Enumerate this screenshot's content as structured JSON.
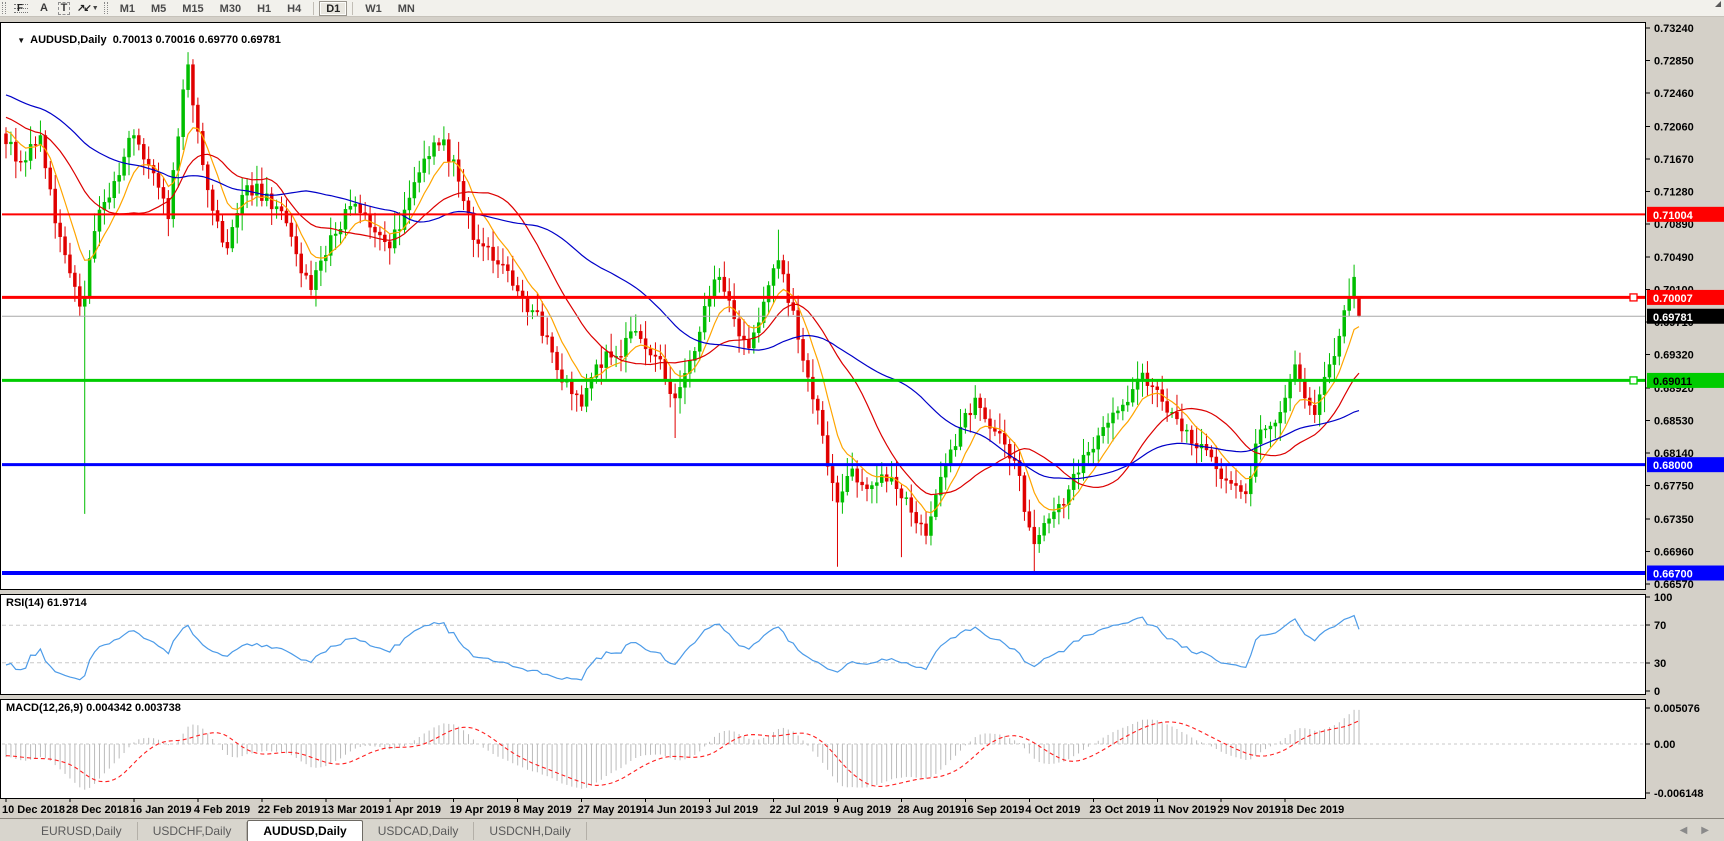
{
  "toolbar": {
    "tools": [
      {
        "id": "fibonacci",
        "glyph": "F"
      },
      {
        "id": "label",
        "glyph": "A"
      },
      {
        "id": "text",
        "glyph": "T"
      },
      {
        "id": "arrows",
        "glyph": "↗↙"
      }
    ],
    "timeframes": [
      "M1",
      "M5",
      "M15",
      "M30",
      "H1",
      "H4",
      "D1",
      "W1",
      "MN"
    ],
    "active_timeframe": "D1"
  },
  "chart_header": {
    "symbol_title": "AUDUSD,Daily",
    "ohlc_text": "0.70013 0.70016 0.69770 0.69781"
  },
  "indicators": {
    "rsi_label": "RSI(14) 61.9714",
    "macd_label": "MACD(12,26,9) 0.004342 0.003738"
  },
  "tabs": {
    "items": [
      "EURUSD,Daily",
      "USDCHF,Daily",
      "AUDUSD,Daily",
      "USDCAD,Daily",
      "USDCNH,Daily"
    ],
    "active": "AUDUSD,Daily"
  },
  "chart_data": {
    "type": "candlestick",
    "symbol": "AUDUSD",
    "timeframe": "Daily",
    "last_candle": {
      "open": 0.70013,
      "high": 0.70016,
      "low": 0.6977,
      "close": 0.69781
    },
    "bars": 276,
    "label_interval_bars": 13,
    "price_anchors": [
      [
        0,
        0.7185
      ],
      [
        4,
        0.7165
      ],
      [
        7,
        0.7195
      ],
      [
        10,
        0.709
      ],
      [
        13,
        0.703
      ],
      [
        15,
        0.699
      ],
      [
        16,
        0.7
      ],
      [
        18,
        0.708
      ],
      [
        22,
        0.714
      ],
      [
        26,
        0.7195
      ],
      [
        30,
        0.715
      ],
      [
        33,
        0.7095
      ],
      [
        36,
        0.725
      ],
      [
        37,
        0.728
      ],
      [
        39,
        0.72
      ],
      [
        42,
        0.7105
      ],
      [
        45,
        0.706
      ],
      [
        49,
        0.7135
      ],
      [
        53,
        0.7125
      ],
      [
        57,
        0.709
      ],
      [
        60,
        0.703
      ],
      [
        62,
        0.701
      ],
      [
        66,
        0.7075
      ],
      [
        70,
        0.711
      ],
      [
        74,
        0.7085
      ],
      [
        78,
        0.706
      ],
      [
        82,
        0.712
      ],
      [
        86,
        0.717
      ],
      [
        89,
        0.719
      ],
      [
        92,
        0.714
      ],
      [
        95,
        0.707
      ],
      [
        99,
        0.7045
      ],
      [
        103,
        0.7015
      ],
      [
        107,
        0.6985
      ],
      [
        111,
        0.6935
      ],
      [
        115,
        0.6885
      ],
      [
        117,
        0.687
      ],
      [
        120,
        0.692
      ],
      [
        124,
        0.693
      ],
      [
        128,
        0.696
      ],
      [
        132,
        0.693
      ],
      [
        136,
        0.688
      ],
      [
        139,
        0.6925
      ],
      [
        142,
        0.699
      ],
      [
        145,
        0.7025
      ],
      [
        148,
        0.6975
      ],
      [
        151,
        0.694
      ],
      [
        155,
        0.7015
      ],
      [
        157,
        0.7045
      ],
      [
        160,
        0.6985
      ],
      [
        163,
        0.6905
      ],
      [
        166,
        0.6835
      ],
      [
        169,
        0.6755
      ],
      [
        172,
        0.6795
      ],
      [
        176,
        0.6775
      ],
      [
        180,
        0.6785
      ],
      [
        182,
        0.676
      ],
      [
        185,
        0.673
      ],
      [
        187,
        0.6715
      ],
      [
        190,
        0.6785
      ],
      [
        194,
        0.6845
      ],
      [
        197,
        0.688
      ],
      [
        201,
        0.684
      ],
      [
        205,
        0.6805
      ],
      [
        208,
        0.6725
      ],
      [
        209,
        0.6705
      ],
      [
        212,
        0.6735
      ],
      [
        216,
        0.677
      ],
      [
        220,
        0.6815
      ],
      [
        224,
        0.685
      ],
      [
        228,
        0.6875
      ],
      [
        231,
        0.691
      ],
      [
        234,
        0.689
      ],
      [
        238,
        0.6855
      ],
      [
        242,
        0.682
      ],
      [
        246,
        0.6795
      ],
      [
        250,
        0.6775
      ],
      [
        252,
        0.6765
      ],
      [
        254,
        0.6825
      ],
      [
        258,
        0.685
      ],
      [
        260,
        0.688
      ],
      [
        262,
        0.692
      ],
      [
        264,
        0.688
      ],
      [
        266,
        0.686
      ],
      [
        268,
        0.6905
      ],
      [
        270,
        0.693
      ],
      [
        272,
        0.6985
      ],
      [
        274,
        0.7025
      ],
      [
        275,
        0.69781
      ]
    ],
    "overrides": {
      "16": {
        "low": 0.6741
      },
      "37": {
        "high": 0.7295
      },
      "45": {
        "low": 0.7052
      },
      "62": {
        "low": 0.7003
      },
      "89": {
        "high": 0.7206
      },
      "117": {
        "low": 0.68645
      },
      "136": {
        "low": 0.6832
      },
      "157": {
        "high": 0.7082
      },
      "169": {
        "low": 0.66775
      },
      "182": {
        "low": 0.6689
      },
      "209": {
        "low": 0.66705
      },
      "274": {
        "high": 0.704
      },
      "275": {
        "open": 0.70013,
        "high": 0.70016,
        "low": 0.6977,
        "close": 0.69781
      }
    },
    "noise": 0.0022,
    "prehistory": {
      "bars": 50,
      "from": 0.73,
      "to": 0.72
    },
    "moving_averages": [
      {
        "name": "fast",
        "method": "ema",
        "period": 8,
        "color": "#FFA500"
      },
      {
        "name": "mid",
        "method": "sma",
        "period": 20,
        "color": "#DC0000"
      },
      {
        "name": "slow",
        "method": "sma",
        "period": 45,
        "color": "#0000C8"
      }
    ],
    "oscillators": {
      "rsi": {
        "period": 14,
        "levels": [
          70,
          30
        ],
        "current_value": "61.9714",
        "color": "#4C9BE8"
      },
      "macd": {
        "fast": 12,
        "slow": 26,
        "signal": 9,
        "current_values": [
          "0.004342",
          "0.003738"
        ],
        "histogram_color": "#BBBBBB",
        "signal_color": "#FF2020"
      }
    },
    "price_axis_ticks": [
      "0.73240",
      "0.72850",
      "0.72460",
      "0.72060",
      "0.71670",
      "0.71280",
      "0.70890",
      "0.70490",
      "0.70100",
      "0.69710",
      "0.69320",
      "0.68920",
      "0.68530",
      "0.68140",
      "0.67750",
      "0.67350",
      "0.66960",
      "0.66570"
    ],
    "rsi_axis_ticks": [
      "100",
      "70",
      "30",
      "0"
    ],
    "macd_axis_ticks": {
      "top": "0.005076",
      "zero": "0.00",
      "bottom": "-0.006148"
    },
    "time_axis_labels": [
      "10 Dec 2018",
      "28 Dec 2018",
      "16 Jan 2019",
      "4 Feb 2019",
      "22 Feb 2019",
      "13 Mar 2019",
      "1 Apr 2019",
      "19 Apr 2019",
      "8 May 2019",
      "27 May 2019",
      "14 Jun 2019",
      "3 Jul 2019",
      "22 Jul 2019",
      "9 Aug 2019",
      "28 Aug 2019",
      "16 Sep 2019",
      "4 Oct 2019",
      "23 Oct 2019",
      "11 Nov 2019",
      "29 Nov 2019",
      "18 Dec 2019"
    ],
    "hlines": [
      {
        "price": 0.71004,
        "label": "0.71004",
        "color": "#FF0000",
        "width": 2,
        "label_bg": "#FF0000",
        "label_fg": "#FFFFFF",
        "handle": false
      },
      {
        "price": 0.70007,
        "label": "0.70007",
        "color": "#FF0000",
        "width": 3,
        "label_bg": "#FF0000",
        "label_fg": "#FFFFFF",
        "handle": true
      },
      {
        "price": 0.69011,
        "label": "0.69011",
        "color": "#00CC00",
        "width": 3,
        "label_bg": "#00CC00",
        "label_fg": "#000000",
        "handle": true
      },
      {
        "price": 0.68,
        "label": "0.68000",
        "color": "#0000FF",
        "width": 3,
        "label_bg": "#0000FF",
        "label_fg": "#FFFFFF",
        "handle": false
      },
      {
        "price": 0.667,
        "label": "0.66700",
        "color": "#0000FF",
        "width": 4,
        "label_bg": "#0000FF",
        "label_fg": "#FFFFFF",
        "handle": false
      }
    ],
    "current_price_line": {
      "price": 0.69781,
      "label": "0.69781",
      "line_color": "#A8A8A8",
      "label_bg": "#000000",
      "label_fg": "#FFFFFF"
    },
    "colors": {
      "up": "#00BE00",
      "down": "#E00000",
      "panel_bg": "#FFFFFF",
      "app_bg": "#D4D0C8",
      "border": "#000000"
    }
  }
}
